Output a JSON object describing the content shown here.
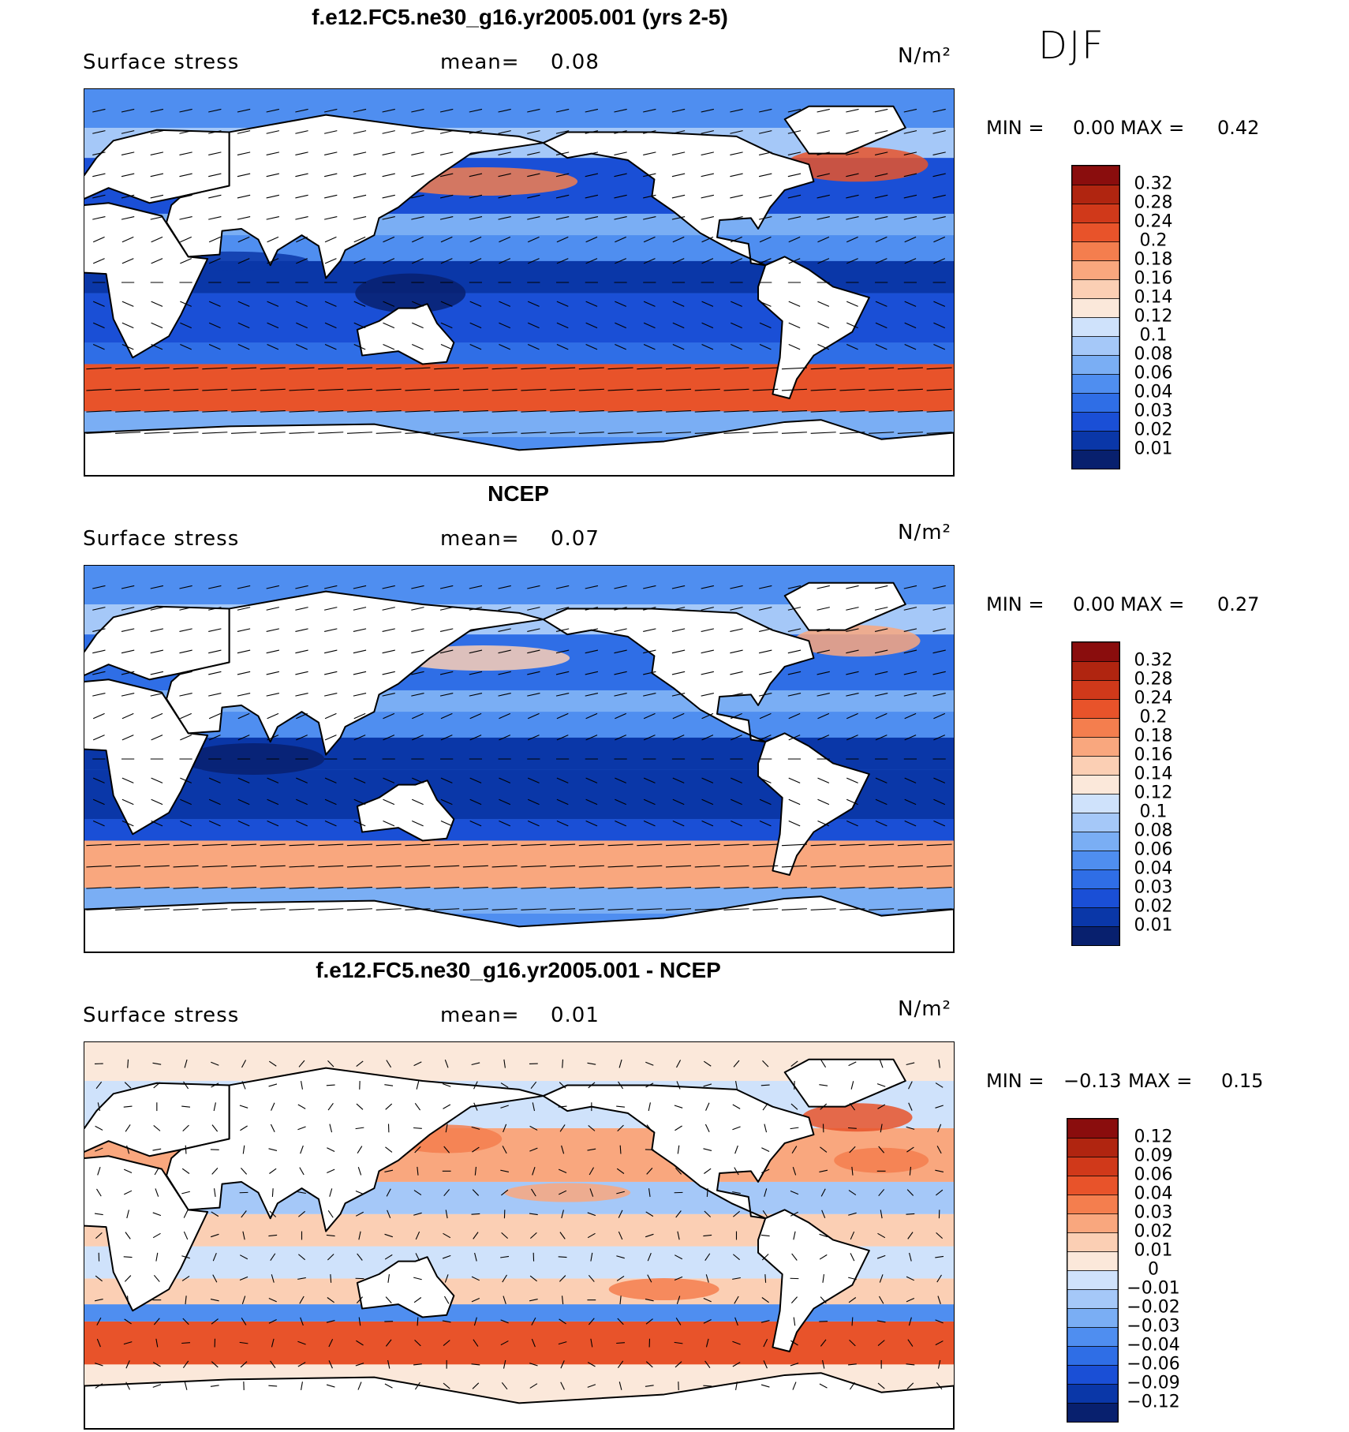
{
  "season": "DJF",
  "palettes": {
    "sequential": [
      "#08206e",
      "#0a37a8",
      "#1a4fd6",
      "#2f6ee6",
      "#4f8ef0",
      "#7aaef4",
      "#a5c8f8",
      "#cfe2fb",
      "#fbe8da",
      "#fbcfb4",
      "#f9a77e",
      "#f47e4e",
      "#e8532a",
      "#d0391a",
      "#b02510",
      "#8a0d0d"
    ],
    "diverging": [
      "#08206e",
      "#0a37a8",
      "#1a4fd6",
      "#2f6ee6",
      "#4f8ef0",
      "#7aaef4",
      "#a5c8f8",
      "#cfe2fb",
      "#fbe8da",
      "#fbcfb4",
      "#f9a77e",
      "#f47e4e",
      "#e8532a",
      "#d0391a",
      "#b02510",
      "#8a0d0d"
    ]
  },
  "panels": [
    {
      "title": "f.e12.FC5.ne30_g16.yr2005.001 (yrs 2-5)",
      "variable": "Surface stress",
      "mean_label": "mean=",
      "mean_value": "0.08",
      "units": "N/m²",
      "min_label": "MIN =",
      "min_value": "0.00",
      "max_label": "MAX =",
      "max_value": "0.42",
      "colorbar_levels": [
        "0.32",
        "0.28",
        "0.24",
        "0.2",
        "0.18",
        "0.16",
        "0.14",
        "0.12",
        "0.1",
        "0.08",
        "0.06",
        "0.04",
        "0.03",
        "0.02",
        "0.01"
      ]
    },
    {
      "title": "NCEP",
      "variable": "Surface stress",
      "mean_label": "mean=",
      "mean_value": "0.07",
      "units": "N/m²",
      "min_label": "MIN =",
      "min_value": "0.00",
      "max_label": "MAX =",
      "max_value": "0.27",
      "colorbar_levels": [
        "0.32",
        "0.28",
        "0.24",
        "0.2",
        "0.18",
        "0.16",
        "0.14",
        "0.12",
        "0.1",
        "0.08",
        "0.06",
        "0.04",
        "0.03",
        "0.02",
        "0.01"
      ]
    },
    {
      "title": "f.e12.FC5.ne30_g16.yr2005.001 - NCEP",
      "variable": "Surface stress",
      "mean_label": "mean=",
      "mean_value": "0.01",
      "units": "N/m²",
      "min_label": "MIN =",
      "min_value": "−0.13",
      "max_label": "MAX =",
      "max_value": "0.15",
      "colorbar_levels": [
        "0.12",
        "0.09",
        "0.06",
        "0.04",
        "0.03",
        "0.02",
        "0.01",
        "0",
        "−0.01",
        "−0.02",
        "−0.03",
        "−0.04",
        "−0.06",
        "−0.09",
        "−0.12"
      ]
    }
  ],
  "chart_data": [
    {
      "type": "heatmap",
      "title": "f.e12.FC5.ne30_g16.yr2005.001 (yrs 2-5)",
      "subtitle": "Surface stress",
      "units": "N/m²",
      "mean": 0.08,
      "min": 0.0,
      "max": 0.42,
      "levels": [
        0.01,
        0.02,
        0.03,
        0.04,
        0.06,
        0.08,
        0.1,
        0.12,
        0.14,
        0.16,
        0.18,
        0.2,
        0.24,
        0.28,
        0.32
      ],
      "overlay": "wind stress vectors"
    },
    {
      "type": "heatmap",
      "title": "NCEP",
      "subtitle": "Surface stress",
      "units": "N/m²",
      "mean": 0.07,
      "min": 0.0,
      "max": 0.27,
      "levels": [
        0.01,
        0.02,
        0.03,
        0.04,
        0.06,
        0.08,
        0.1,
        0.12,
        0.14,
        0.16,
        0.18,
        0.2,
        0.24,
        0.28,
        0.32
      ],
      "overlay": "wind stress vectors"
    },
    {
      "type": "heatmap",
      "title": "f.e12.FC5.ne30_g16.yr2005.001 - NCEP",
      "subtitle": "Surface stress",
      "units": "N/m²",
      "mean": 0.01,
      "min": -0.13,
      "max": 0.15,
      "levels": [
        -0.12,
        -0.09,
        -0.06,
        -0.04,
        -0.03,
        -0.02,
        -0.01,
        0,
        0.01,
        0.02,
        0.03,
        0.04,
        0.06,
        0.09,
        0.12
      ],
      "overlay": "wind stress difference vectors"
    }
  ]
}
